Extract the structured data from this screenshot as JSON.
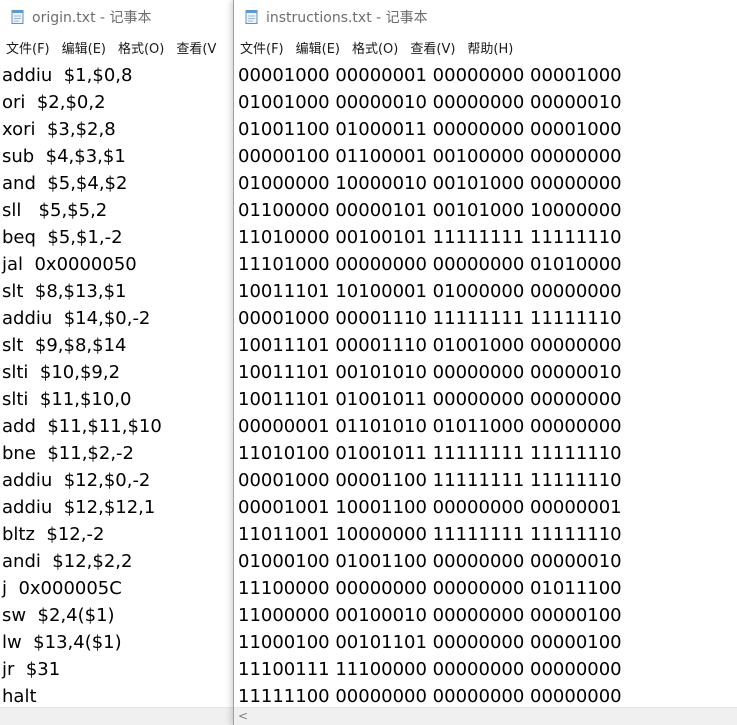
{
  "origin_window": {
    "title": "origin.txt - 记事本",
    "icon": "notepad-icon",
    "menu": [
      "文件(F)",
      "编辑(E)",
      "格式(O)",
      "查看(V"
    ],
    "lines": [
      "addiu  $1,$0,8",
      "ori  $2,$0,2",
      "xori  $3,$2,8",
      "sub  $4,$3,$1",
      "and  $5,$4,$2",
      "sll   $5,$5,2",
      "beq  $5,$1,-2",
      "jal  0x0000050",
      "slt  $8,$13,$1",
      "addiu  $14,$0,-2",
      "slt  $9,$8,$14",
      "slti  $10,$9,2",
      "slti  $11,$10,0",
      "add  $11,$11,$10",
      "bne  $11,$2,-2",
      "addiu  $12,$0,-2",
      "addiu  $12,$12,1",
      "bltz  $12,-2",
      "andi  $12,$2,2",
      "j  0x000005C",
      "sw  $2,4($1)",
      "lw  $13,4($1)",
      "jr  $31",
      "halt"
    ]
  },
  "instructions_window": {
    "title": "instructions.txt - 记事本",
    "icon": "notepad-icon",
    "menu": [
      "文件(F)",
      "编辑(E)",
      "格式(O)",
      "查看(V)",
      "帮助(H)"
    ],
    "lines": [
      "00001000 00000001 00000000 00001000",
      "01001000 00000010 00000000 00000010",
      "01001100 01000011 00000000 00001000",
      "00000100 01100001 00100000 00000000",
      "01000000 10000010 00101000 00000000",
      "01100000 00000101 00101000 10000000",
      "11010000 00100101 11111111 11111110",
      "11101000 00000000 00000000 01010000",
      "10011101 10100001 01000000 00000000",
      "00001000 00001110 11111111 11111110",
      "10011101 00001110 01001000 00000000",
      "10011101 00101010 00000000 00000010",
      "10011101 01001011 00000000 00000000",
      "00000001 01101010 01011000 00000000",
      "11010100 01001011 11111111 11111110",
      "00001000 00001100 11111111 11111110",
      "00001001 10001100 00000000 00000001",
      "11011001 10000000 11111111 11111110",
      "01000100 01001100 00000000 00000010",
      "11100000 00000000 00000000 01011100",
      "11000000 00100010 00000000 00000100",
      "11000100 00101101 00000000 00000100",
      "11100111 11100000 00000000 00000000",
      "11111100 00000000 00000000 00000000"
    ],
    "scrollbar_arrow": "<"
  },
  "colors": {
    "title_text": "#6d6d6d",
    "menu_text": "#1a1a1a",
    "editor_text": "#000000",
    "background": "#ffffff",
    "scrollbar": "#f0f0f0"
  }
}
